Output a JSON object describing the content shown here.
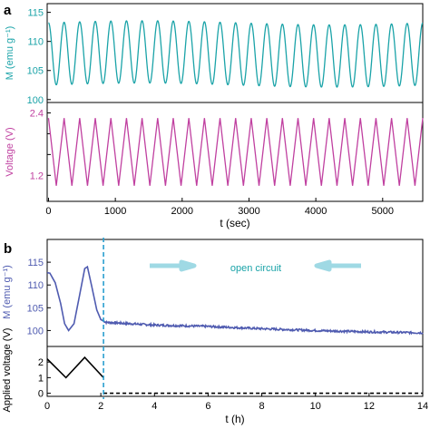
{
  "panels": {
    "a": {
      "label": "a"
    },
    "b": {
      "label": "b"
    }
  },
  "colors": {
    "magnetization_a": "#1aa3a8",
    "voltage_a": "#c040a0",
    "magnetization_b": "#4f5bb0",
    "voltage_b": "#000000",
    "divider": "#2a9fd0",
    "arrow": "#8fd3e0",
    "annotation": "#1aa3a8",
    "axis": "#000000"
  },
  "chart_data": [
    {
      "id": "a-top",
      "type": "line",
      "ylabel": "M (emu g⁻¹)",
      "ylim": [
        99.5,
        116.5
      ],
      "yticks": [
        100,
        105,
        110,
        115
      ],
      "xlim": [
        -20,
        5600
      ],
      "series": [
        {
          "kind": "oscillation",
          "x_start": 0,
          "x_end": 5600,
          "cycles": 24,
          "min": 102.5,
          "max": 113.2,
          "start_phase": "high"
        }
      ],
      "grid": false
    },
    {
      "id": "a-bottom",
      "type": "line",
      "ylabel": "Voltage (V)",
      "ylim": [
        0.7,
        2.6
      ],
      "yticks": [
        1.2,
        1.6,
        2.0,
        2.4
      ],
      "ytick_labels": [
        "1.2",
        "",
        "",
        "2.4"
      ],
      "xlabel": "t (sec)",
      "xlim": [
        -20,
        5600
      ],
      "xticks": [
        0,
        1000,
        2000,
        3000,
        4000,
        5000
      ],
      "series": [
        {
          "kind": "triangle",
          "x_start": 0,
          "x_end": 5600,
          "cycles": 24,
          "min": 1.0,
          "max": 2.3,
          "start_phase": "high"
        }
      ],
      "grid": false
    },
    {
      "id": "b-top",
      "type": "line",
      "ylabel": "M (emu g⁻¹)",
      "ylim": [
        96.5,
        120
      ],
      "yticks": [
        100,
        105,
        110,
        115
      ],
      "xlim": [
        0,
        14
      ],
      "series": [
        {
          "points": [
            [
              0,
              112.7
            ],
            [
              0.1,
              112.6
            ],
            [
              0.3,
              110.5
            ],
            [
              0.5,
              106
            ],
            [
              0.65,
              101.5
            ],
            [
              0.8,
              100.0
            ],
            [
              1.0,
              101.5
            ],
            [
              1.2,
              107.5
            ],
            [
              1.4,
              113.6
            ],
            [
              1.5,
              114.0
            ],
            [
              1.65,
              110
            ],
            [
              1.85,
              104.5
            ],
            [
              2.0,
              102.4
            ],
            [
              2.2,
              101.8
            ],
            [
              4,
              101.2
            ],
            [
              6,
              100.9
            ],
            [
              8,
              100.4
            ],
            [
              10,
              100.0
            ],
            [
              12,
              99.7
            ],
            [
              14,
              99.5
            ]
          ],
          "noise_after": 2.1
        }
      ],
      "annotation": "open circuit",
      "divider_x": 2.1,
      "grid": false
    },
    {
      "id": "b-bottom",
      "type": "line",
      "ylabel": "Applied voltage (V)",
      "ylim": [
        -0.2,
        3.0
      ],
      "yticks": [
        0,
        1,
        2
      ],
      "xlabel": "t (h)",
      "xlim": [
        0,
        14
      ],
      "xticks": [
        0,
        2,
        4,
        6,
        8,
        10,
        12,
        14
      ],
      "series": [
        {
          "style": "solid",
          "points": [
            [
              0,
              2.2
            ],
            [
              0.7,
              1.0
            ],
            [
              1.4,
              2.3
            ],
            [
              2.1,
              1.0
            ]
          ]
        },
        {
          "style": "dashed",
          "points": [
            [
              2.1,
              0.0
            ],
            [
              14,
              0.0
            ]
          ]
        }
      ],
      "grid": false
    }
  ]
}
